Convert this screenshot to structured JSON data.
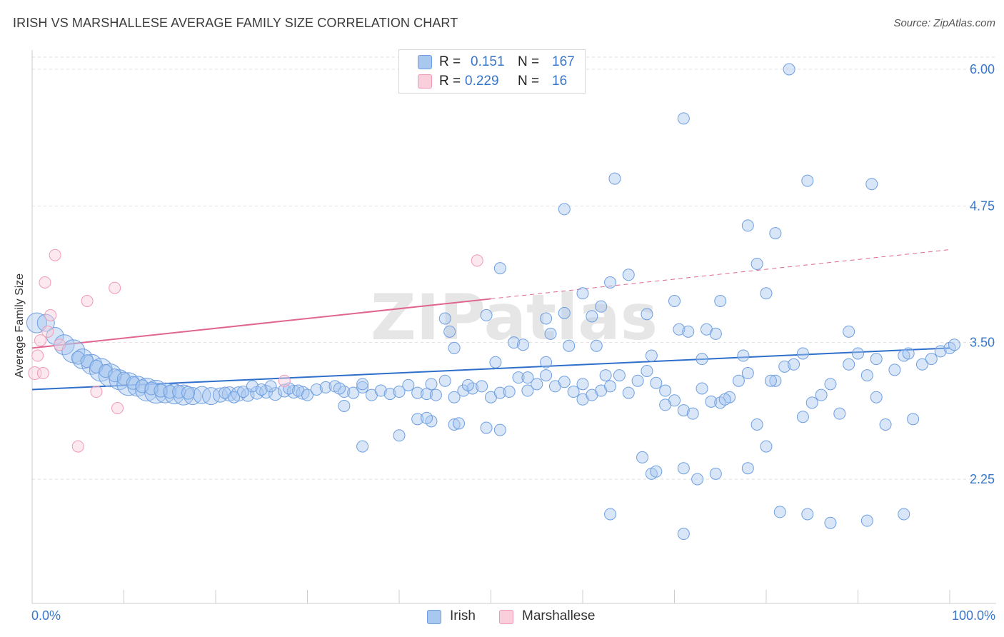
{
  "title": "IRISH VS MARSHALLESE AVERAGE FAMILY SIZE CORRELATION CHART",
  "source": "Source: ZipAtlas.com",
  "watermark": "ZIPatlas",
  "legend": {
    "rows": [
      {
        "r_label": "R =",
        "r_value": "0.151",
        "n_label": "N =",
        "n_value": "167",
        "color": "#a9c8f0"
      },
      {
        "r_label": "R =",
        "r_value": "0.229",
        "n_label": "N =",
        "n_value": "16",
        "color": "#f5b8cb"
      }
    ]
  },
  "bottom_legend": [
    {
      "label": "Irish",
      "color": "#a9c8f0"
    },
    {
      "label": "Marshallese",
      "color": "#f5b8cb"
    }
  ],
  "chart_data": {
    "type": "scatter",
    "title": "IRISH VS MARSHALLESE AVERAGE FAMILY SIZE CORRELATION CHART",
    "xlabel": "",
    "ylabel": "Average Family Size",
    "xlim": [
      0,
      100
    ],
    "ylim": [
      1.2,
      6.2
    ],
    "x_tick_labels": [
      "0.0%",
      "100.0%"
    ],
    "y_ticks": [
      2.25,
      3.5,
      4.75,
      6.0
    ],
    "y_tick_labels": [
      "2.25",
      "3.50",
      "4.75",
      "6.00"
    ],
    "grid": true,
    "series": [
      {
        "name": "Irish",
        "color": "#6f9fe0",
        "trend": {
          "x": [
            0,
            100
          ],
          "y": [
            3.07,
            3.45
          ],
          "color": "#2e6fcc"
        },
        "points": [
          [
            0.5,
            3.68,
            14
          ],
          [
            1.5,
            3.68,
            12
          ],
          [
            2.5,
            3.56,
            12
          ],
          [
            3.5,
            3.48,
            14
          ],
          [
            4.5,
            3.42,
            16
          ],
          [
            5.5,
            3.35,
            14
          ],
          [
            6.5,
            3.3,
            14
          ],
          [
            7.5,
            3.25,
            16
          ],
          [
            8.5,
            3.2,
            16
          ],
          [
            9.5,
            3.16,
            14
          ],
          [
            10.5,
            3.12,
            16
          ],
          [
            11.5,
            3.1,
            14
          ],
          [
            12.5,
            3.07,
            16
          ],
          [
            13.5,
            3.05,
            16
          ],
          [
            14.5,
            3.04,
            14
          ],
          [
            15.5,
            3.03,
            14
          ],
          [
            16.5,
            3.02,
            14
          ],
          [
            17.5,
            3.01,
            12
          ],
          [
            18.5,
            3.02,
            12
          ],
          [
            19.5,
            3.01,
            12
          ],
          [
            20.5,
            3.02,
            10
          ],
          [
            21.5,
            3.03,
            10
          ],
          [
            22.5,
            3.03,
            10
          ],
          [
            23.5,
            3.02,
            9
          ],
          [
            24.5,
            3.04,
            9
          ],
          [
            25.5,
            3.05,
            9
          ],
          [
            26.5,
            3.03,
            9
          ],
          [
            27.5,
            3.06,
            9
          ],
          [
            28.5,
            3.05,
            9
          ],
          [
            29.5,
            3.04,
            9
          ],
          [
            5,
            3.36,
            9
          ],
          [
            6,
            3.33,
            9
          ],
          [
            7,
            3.28,
            9
          ],
          [
            8,
            3.24,
            9
          ],
          [
            9,
            3.2,
            9
          ],
          [
            10,
            3.17,
            9
          ],
          [
            11,
            3.13,
            9
          ],
          [
            12,
            3.1,
            9
          ],
          [
            13,
            3.08,
            9
          ],
          [
            14,
            3.06,
            9
          ],
          [
            15,
            3.05,
            9
          ],
          [
            16,
            3.05,
            9
          ],
          [
            17,
            3.04,
            9
          ],
          [
            21,
            3.04,
            8
          ],
          [
            22,
            3.0,
            8
          ],
          [
            23,
            3.05,
            8
          ],
          [
            24,
            3.1,
            8
          ],
          [
            25,
            3.07,
            8
          ],
          [
            26,
            3.1,
            8
          ],
          [
            28,
            3.08,
            8
          ],
          [
            29,
            3.06,
            8
          ],
          [
            30,
            3.02,
            8
          ],
          [
            31,
            3.07,
            8
          ],
          [
            32,
            3.09,
            8
          ],
          [
            33,
            3.1,
            8
          ],
          [
            34,
            3.05,
            8
          ],
          [
            35,
            3.04,
            8
          ],
          [
            36,
            3.09,
            8
          ],
          [
            37,
            3.02,
            8
          ],
          [
            38,
            3.06,
            8
          ],
          [
            39,
            3.03,
            8
          ],
          [
            40,
            3.05,
            8
          ],
          [
            41,
            3.11,
            8
          ],
          [
            42,
            3.04,
            8
          ],
          [
            43,
            3.03,
            8
          ],
          [
            44,
            3.02,
            8
          ],
          [
            45,
            3.15,
            8
          ],
          [
            46,
            3.0,
            8
          ],
          [
            47,
            3.06,
            8
          ],
          [
            48,
            3.08,
            8
          ],
          [
            49,
            3.1,
            8
          ],
          [
            50,
            3.0,
            8
          ],
          [
            51,
            3.04,
            8
          ],
          [
            52,
            3.05,
            8
          ],
          [
            53,
            3.18,
            8
          ],
          [
            54,
            3.06,
            8
          ],
          [
            55,
            3.12,
            8
          ],
          [
            56,
            3.2,
            8
          ],
          [
            57,
            3.1,
            8
          ],
          [
            58,
            3.14,
            8
          ],
          [
            59,
            3.05,
            8
          ],
          [
            60,
            2.98,
            8
          ],
          [
            61,
            3.02,
            8
          ],
          [
            62,
            3.06,
            8
          ],
          [
            63,
            3.1,
            8
          ],
          [
            64,
            3.2,
            8
          ],
          [
            65,
            3.04,
            8
          ],
          [
            66,
            3.15,
            8
          ],
          [
            67,
            3.24,
            8
          ],
          [
            68,
            3.13,
            8
          ],
          [
            69,
            3.06,
            8
          ],
          [
            70,
            2.97,
            8
          ],
          [
            71,
            2.88,
            8
          ],
          [
            72,
            2.85,
            8
          ],
          [
            73,
            3.08,
            8
          ],
          [
            74,
            2.96,
            8
          ],
          [
            75,
            2.95,
            8
          ],
          [
            76,
            3.0,
            8
          ],
          [
            77,
            3.15,
            8
          ],
          [
            78,
            3.22,
            8
          ],
          [
            79,
            2.75,
            8
          ],
          [
            80,
            2.55,
            8
          ],
          [
            81,
            3.15,
            8
          ],
          [
            82,
            3.28,
            8
          ],
          [
            83,
            3.3,
            8
          ],
          [
            84,
            2.82,
            8
          ],
          [
            85,
            2.95,
            8
          ],
          [
            86,
            3.02,
            8
          ],
          [
            87,
            3.12,
            8
          ],
          [
            88,
            2.85,
            8
          ],
          [
            89,
            3.6,
            8
          ],
          [
            90,
            3.4,
            8
          ],
          [
            91,
            3.2,
            8
          ],
          [
            92,
            3.0,
            8
          ],
          [
            93,
            2.75,
            8
          ],
          [
            94,
            3.25,
            8
          ],
          [
            95,
            3.38,
            8
          ],
          [
            96,
            2.8,
            8
          ],
          [
            97,
            3.3,
            8
          ],
          [
            98,
            3.35,
            8
          ],
          [
            99,
            3.42,
            8
          ],
          [
            100,
            3.45,
            8
          ]
        ]
      },
      {
        "name": "Marshallese",
        "color": "#f19ab7",
        "trend": {
          "x": [
            0,
            50
          ],
          "y": [
            3.45,
            3.9
          ],
          "color": "#e0668f",
          "dashed_extension": {
            "x": [
              50,
              100
            ],
            "y": [
              3.9,
              4.35
            ]
          }
        },
        "points": [
          [
            0.3,
            3.22,
            9
          ],
          [
            0.6,
            3.38,
            8
          ],
          [
            0.9,
            3.52,
            8
          ],
          [
            1.2,
            3.22,
            8
          ],
          [
            1.4,
            4.05,
            8
          ],
          [
            1.7,
            3.6,
            8
          ],
          [
            2.0,
            3.75,
            8
          ],
          [
            2.5,
            4.3,
            8
          ],
          [
            3.0,
            3.48,
            8
          ],
          [
            5.0,
            2.55,
            8
          ],
          [
            6.0,
            3.88,
            8
          ],
          [
            7.0,
            3.05,
            8
          ],
          [
            9.0,
            4.0,
            8
          ],
          [
            9.3,
            2.9,
            8
          ],
          [
            27.5,
            3.15,
            8
          ],
          [
            48.5,
            4.25,
            8
          ]
        ]
      }
    ],
    "scatter_points_irish_sparse": [
      [
        82.5,
        6.0
      ],
      [
        71,
        5.55
      ],
      [
        63.5,
        5.0
      ],
      [
        84.5,
        4.98
      ],
      [
        91.5,
        4.95
      ],
      [
        58,
        4.72
      ],
      [
        78,
        4.57
      ],
      [
        81,
        4.5
      ],
      [
        79,
        4.22
      ],
      [
        51,
        4.18
      ],
      [
        65,
        4.12
      ],
      [
        63,
        4.05
      ],
      [
        60,
        3.95
      ],
      [
        80,
        3.95
      ],
      [
        70,
        3.88
      ],
      [
        75,
        3.88
      ],
      [
        62,
        3.83
      ],
      [
        58,
        3.77
      ],
      [
        56,
        3.72
      ],
      [
        45,
        3.72
      ],
      [
        49.5,
        3.75
      ],
      [
        61,
        3.74
      ],
      [
        67,
        3.76
      ],
      [
        70.5,
        3.62
      ],
      [
        71.5,
        3.6
      ],
      [
        73.5,
        3.62
      ],
      [
        74.5,
        3.58
      ],
      [
        45.5,
        3.6
      ],
      [
        56.5,
        3.58
      ],
      [
        52.5,
        3.5
      ],
      [
        53.5,
        3.48
      ],
      [
        61.5,
        3.47
      ],
      [
        58.5,
        3.47
      ],
      [
        46,
        3.45
      ],
      [
        56,
        3.32
      ],
      [
        50.5,
        3.32
      ],
      [
        73,
        3.35
      ],
      [
        67.5,
        3.38
      ],
      [
        77.5,
        3.38
      ],
      [
        84,
        3.4
      ],
      [
        95.5,
        3.4
      ],
      [
        100.5,
        3.48
      ],
      [
        92,
        3.35
      ],
      [
        89,
        3.3
      ],
      [
        62.5,
        3.2
      ],
      [
        54,
        3.18
      ],
      [
        60,
        3.12
      ],
      [
        47.5,
        3.11
      ],
      [
        43.5,
        3.12
      ],
      [
        33.5,
        3.08
      ],
      [
        36,
        3.12
      ],
      [
        34,
        2.92
      ],
      [
        43.5,
        2.78
      ],
      [
        42,
        2.8
      ],
      [
        43,
        2.81
      ],
      [
        46,
        2.75
      ],
      [
        46.5,
        2.76
      ],
      [
        36,
        2.55
      ],
      [
        40,
        2.65
      ],
      [
        49.5,
        2.72
      ],
      [
        51,
        2.7
      ],
      [
        69,
        2.93
      ],
      [
        75.5,
        2.98
      ],
      [
        80.5,
        3.15
      ],
      [
        66.5,
        2.45
      ],
      [
        67.5,
        2.3
      ],
      [
        68,
        2.32
      ],
      [
        72.5,
        2.25
      ],
      [
        71,
        2.35
      ],
      [
        74.5,
        2.3
      ],
      [
        78,
        2.35
      ],
      [
        63,
        1.93
      ],
      [
        81.5,
        1.95
      ],
      [
        84.5,
        1.93
      ],
      [
        87,
        1.85
      ],
      [
        95,
        1.93
      ],
      [
        71,
        1.75
      ],
      [
        91,
        1.87
      ]
    ]
  }
}
